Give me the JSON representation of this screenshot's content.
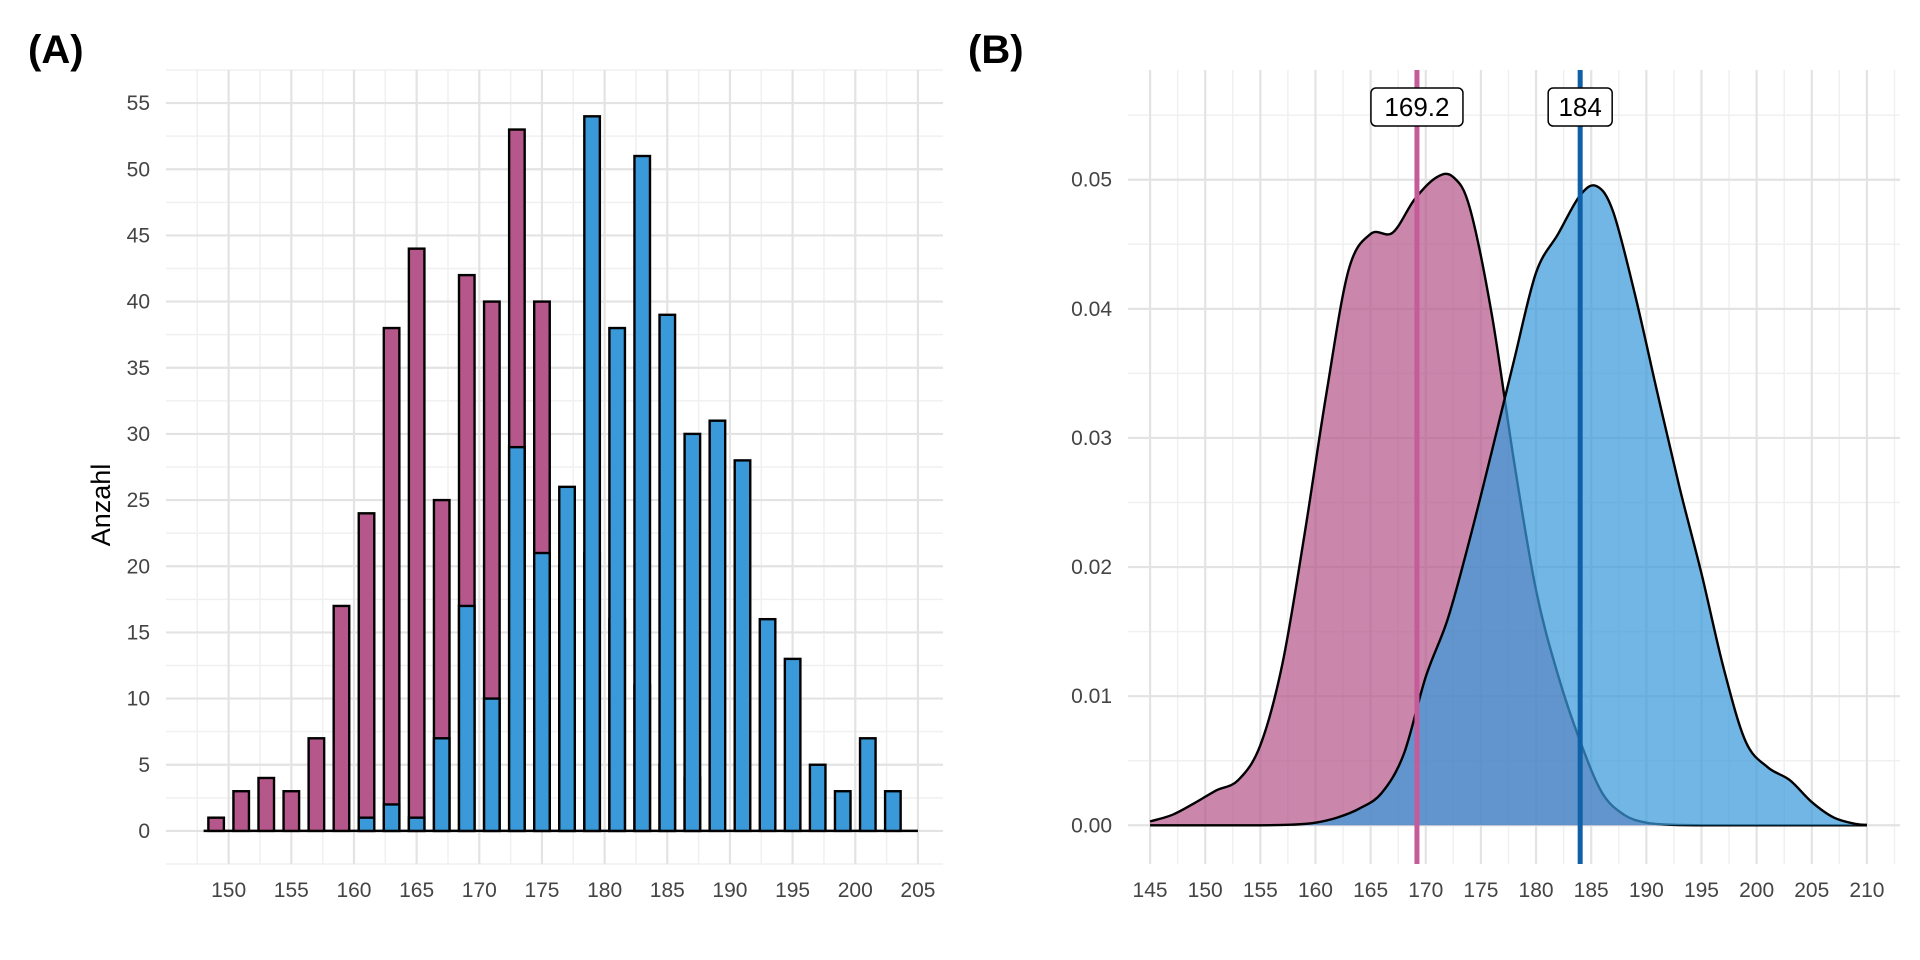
{
  "panels": {
    "a_label": "(A)",
    "b_label": "(B)"
  },
  "colors": {
    "pink": "#b5578a",
    "blue": "#3a9ad9",
    "pink_line": "#c45c9a",
    "blue_line": "#1060a8",
    "grid_major": "#e3e3e3",
    "grid_minor": "#f0f0f0"
  },
  "chart_data": [
    {
      "type": "bar",
      "panel": "A",
      "title": "",
      "xlabel": "",
      "ylabel": "Anzahl",
      "xlim": [
        145,
        207
      ],
      "ylim": [
        -2.5,
        57.5
      ],
      "x_ticks": [
        150,
        155,
        160,
        165,
        170,
        175,
        180,
        185,
        190,
        195,
        200,
        205
      ],
      "y_ticks": [
        0,
        5,
        10,
        15,
        20,
        25,
        30,
        35,
        40,
        45,
        50,
        55
      ],
      "bin_width": 2,
      "series": [
        {
          "color": "pink",
          "x": [
            149,
            151,
            153,
            155,
            157,
            159,
            161,
            163,
            165,
            167,
            169,
            171,
            173,
            175,
            177,
            179,
            181,
            183,
            185,
            187
          ],
          "values": [
            1,
            3,
            4,
            3,
            7,
            17,
            24,
            38,
            44,
            25,
            42,
            40,
            53,
            40,
            20,
            21,
            16,
            11,
            5,
            4
          ]
        },
        {
          "color": "blue",
          "x": [
            161,
            163,
            165,
            167,
            169,
            171,
            173,
            175,
            177,
            179,
            181,
            183,
            185,
            187,
            189,
            191,
            193,
            195,
            197,
            199,
            201,
            203
          ],
          "values": [
            1,
            2,
            1,
            7,
            17,
            10,
            29,
            21,
            26,
            54,
            38,
            51,
            39,
            30,
            31,
            28,
            16,
            13,
            5,
            3,
            7,
            3
          ]
        }
      ]
    },
    {
      "type": "area",
      "panel": "B",
      "title": "",
      "xlabel": "",
      "ylabel": "",
      "xlim": [
        143,
        213
      ],
      "ylim": [
        -0.003,
        0.0585
      ],
      "x_ticks": [
        145,
        150,
        155,
        160,
        165,
        170,
        175,
        180,
        185,
        190,
        195,
        200,
        205,
        210
      ],
      "y_ticks": [
        "0.00",
        "0.01",
        "0.02",
        "0.03",
        "0.04",
        "0.05"
      ],
      "series": [
        {
          "color": "pink",
          "x": [
            145,
            147,
            149,
            151,
            153,
            155,
            157,
            159,
            161,
            163,
            165,
            167,
            169,
            171,
            172.5,
            174,
            176,
            178,
            180,
            182,
            184,
            186,
            188,
            190,
            192,
            195,
            200,
            205,
            210
          ],
          "y": [
            0.0003,
            0.0008,
            0.0017,
            0.0027,
            0.0035,
            0.0062,
            0.0125,
            0.0225,
            0.0335,
            0.043,
            0.0458,
            0.0459,
            0.0485,
            0.0502,
            0.0502,
            0.0478,
            0.0395,
            0.0282,
            0.0182,
            0.0116,
            0.0065,
            0.0025,
            0.0008,
            0.0002,
            5e-05,
            0,
            0,
            0,
            0
          ]
        },
        {
          "color": "blue",
          "x": [
            145,
            155,
            158,
            160,
            162,
            164,
            166,
            168,
            170,
            172,
            174,
            176,
            178,
            180,
            182,
            184,
            185.5,
            187,
            189,
            191,
            193,
            195,
            197,
            199,
            201,
            203,
            205,
            207,
            209,
            210
          ],
          "y": [
            0,
            0,
            5e-05,
            0.0002,
            0.0006,
            0.0013,
            0.0025,
            0.0055,
            0.0115,
            0.016,
            0.0222,
            0.029,
            0.036,
            0.0428,
            0.0458,
            0.0488,
            0.0495,
            0.0475,
            0.041,
            0.0335,
            0.0262,
            0.0195,
            0.0122,
            0.0065,
            0.0045,
            0.0035,
            0.0018,
            0.0006,
            0.0001,
            3e-05
          ]
        }
      ],
      "vlines": [
        {
          "x": 169.2,
          "label": "169.2",
          "color": "pink_line"
        },
        {
          "x": 184,
          "label": "184",
          "color": "blue_line"
        }
      ]
    }
  ]
}
